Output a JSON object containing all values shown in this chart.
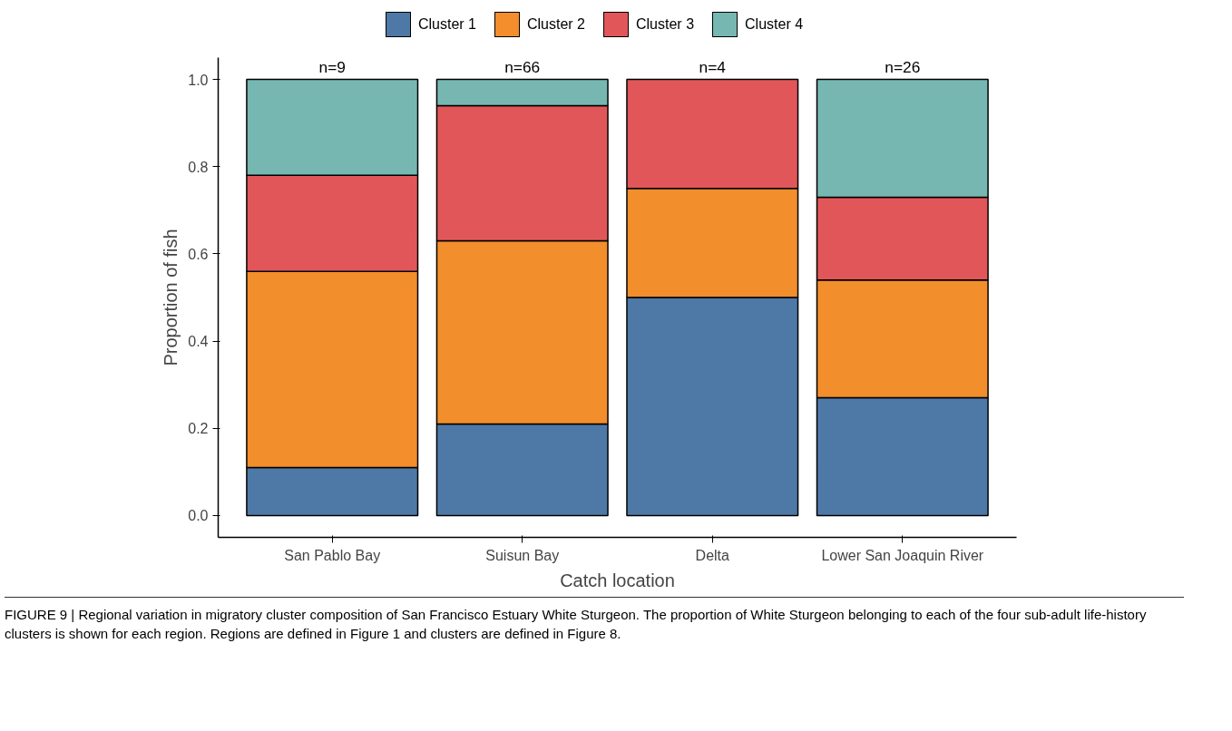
{
  "chart_data": {
    "type": "bar",
    "stacked": true,
    "categories": [
      "San Pablo Bay",
      "Suisun Bay",
      "Delta",
      "Lower San Joaquin River"
    ],
    "series": [
      {
        "name": "Cluster 1",
        "color": "#4e79a7",
        "values": [
          0.11,
          0.21,
          0.5,
          0.27
        ]
      },
      {
        "name": "Cluster 2",
        "color": "#f28e2b",
        "values": [
          0.45,
          0.42,
          0.25,
          0.27
        ]
      },
      {
        "name": "Cluster 3",
        "color": "#e15759",
        "values": [
          0.22,
          0.31,
          0.25,
          0.19
        ]
      },
      {
        "name": "Cluster 4",
        "color": "#76b7b2",
        "values": [
          0.22,
          0.06,
          null,
          0.27
        ]
      }
    ],
    "xlabel": "Catch location",
    "ylabel": "Proportion of fish",
    "ylim": [
      -0.05,
      1.05
    ],
    "yticks": [
      {
        "value": 0,
        "label": "0.0"
      },
      {
        "value": 0.2,
        "label": "0.2"
      },
      {
        "value": 0.4,
        "label": "0.4"
      },
      {
        "value": 0.6,
        "label": "0.6"
      },
      {
        "value": 0.8,
        "label": "0.8"
      },
      {
        "value": 1.0,
        "label": "1.0"
      }
    ],
    "grid": false,
    "legend": "top",
    "annotations": [
      "n=9",
      "n=66",
      "n=4",
      "n=26",
      "FIGURE 9 | Regional variation in migratory cluster composition of San Francisco Estuary White Sturgeon. The proportion of White Sturgeon belonging to each of the four sub-adult life-history clusters is shown for each region. Regions are defined in Figure 1 and clusters are defined in Figure 8."
    ]
  }
}
